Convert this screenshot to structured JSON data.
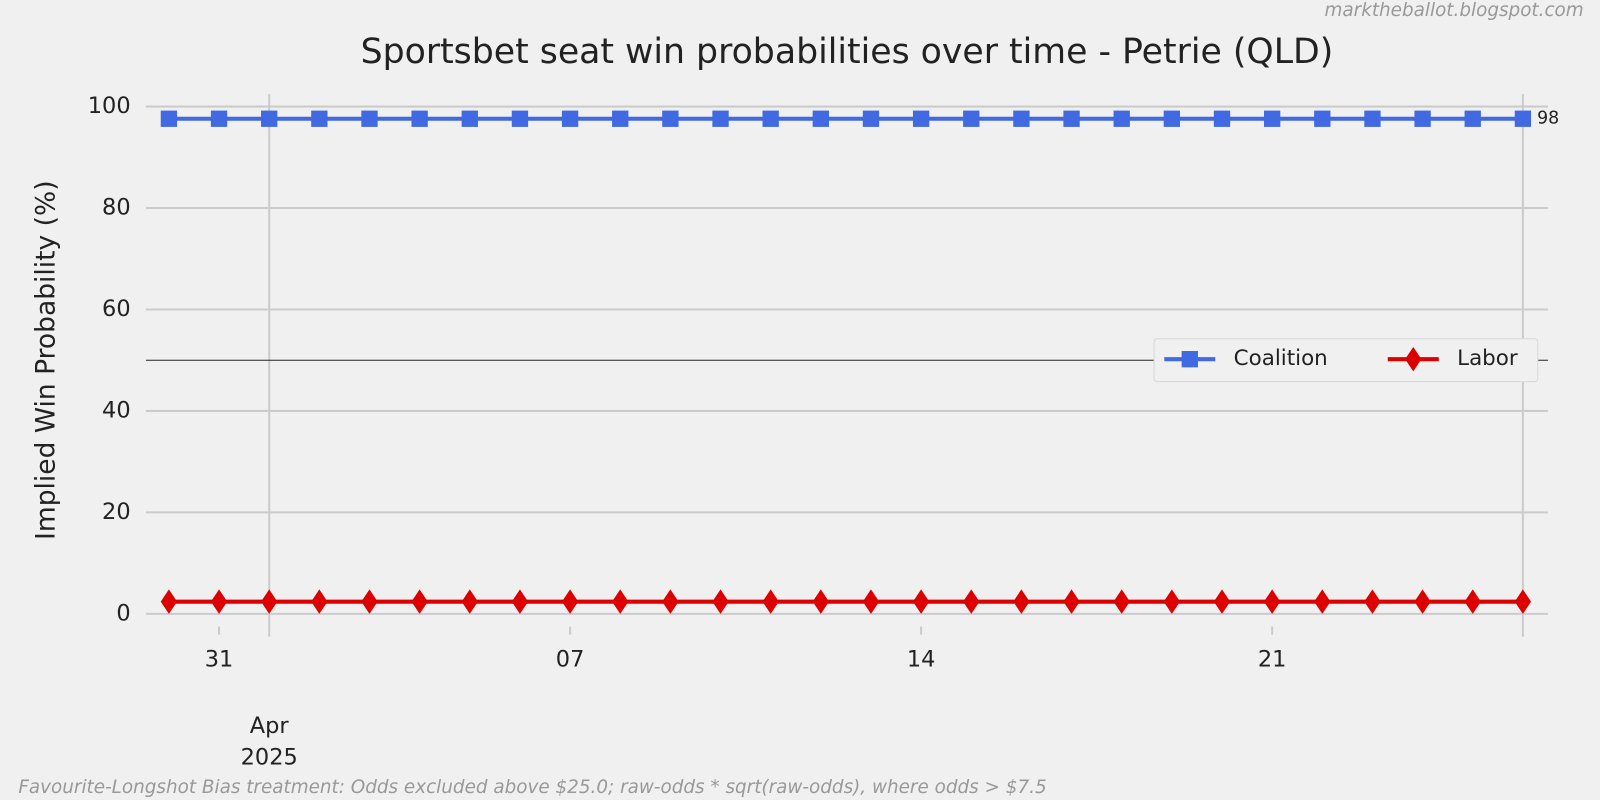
{
  "chart_data": {
    "type": "line",
    "title": "Sportsbet seat win probabilities over time - Petrie (QLD)",
    "watermark": "marktheballot.blogspot.com",
    "footnote": "Favourite-Longshot Bias treatment: Odds excluded above $25.0; raw-odds * sqrt(raw-odds), where odds > $7.5",
    "ylabel": "Implied Win Probability (%)",
    "x": [
      "2025-03-30",
      "2025-03-31",
      "2025-04-01",
      "2025-04-02",
      "2025-04-03",
      "2025-04-04",
      "2025-04-05",
      "2025-04-06",
      "2025-04-07",
      "2025-04-08",
      "2025-04-09",
      "2025-04-10",
      "2025-04-11",
      "2025-04-12",
      "2025-04-13",
      "2025-04-14",
      "2025-04-15",
      "2025-04-16",
      "2025-04-17",
      "2025-04-18",
      "2025-04-19",
      "2025-04-20",
      "2025-04-21",
      "2025-04-22",
      "2025-04-23",
      "2025-04-24",
      "2025-04-25",
      "2025-04-26"
    ],
    "series": [
      {
        "name": "Coalition",
        "color": "#4169e1",
        "marker": "square",
        "values": [
          97.6,
          97.6,
          97.6,
          97.6,
          97.6,
          97.6,
          97.6,
          97.6,
          97.6,
          97.6,
          97.6,
          97.6,
          97.6,
          97.6,
          97.6,
          97.6,
          97.6,
          97.6,
          97.6,
          97.6,
          97.6,
          97.6,
          97.6,
          97.6,
          97.6,
          97.6,
          97.6,
          97.6
        ],
        "value_labels": [
          null,
          null,
          null,
          null,
          null,
          null,
          null,
          null,
          null,
          null,
          null,
          null,
          null,
          null,
          null,
          null,
          null,
          null,
          null,
          null,
          null,
          null,
          null,
          null,
          null,
          null,
          null,
          "98"
        ]
      },
      {
        "name": "Labor",
        "color": "#dd0000",
        "marker": "diamond",
        "values": [
          2.4,
          2.4,
          2.4,
          2.4,
          2.4,
          2.4,
          2.4,
          2.4,
          2.4,
          2.4,
          2.4,
          2.4,
          2.4,
          2.4,
          2.4,
          2.4,
          2.4,
          2.4,
          2.4,
          2.4,
          2.4,
          2.4,
          2.4,
          2.4,
          2.4,
          2.4,
          2.4,
          2.4
        ]
      }
    ],
    "xlim": [
      "2025-03-29T13:00",
      "2025-04-26T12:00"
    ],
    "xticks": [
      {
        "value": "2025-03-31",
        "label": "31"
      },
      {
        "value": "2025-04-07",
        "label": "07"
      },
      {
        "value": "2025-04-14",
        "label": "14"
      },
      {
        "value": "2025-04-21",
        "label": "21"
      }
    ],
    "xticks_major": [
      {
        "value": "2025-04-01",
        "label": [
          "Apr",
          "2025"
        ]
      }
    ],
    "ylim": [
      -2.5,
      102.5
    ],
    "yticks": [
      0,
      20,
      40,
      60,
      80,
      100
    ],
    "hline": 50,
    "grid": true,
    "legend": "right"
  }
}
